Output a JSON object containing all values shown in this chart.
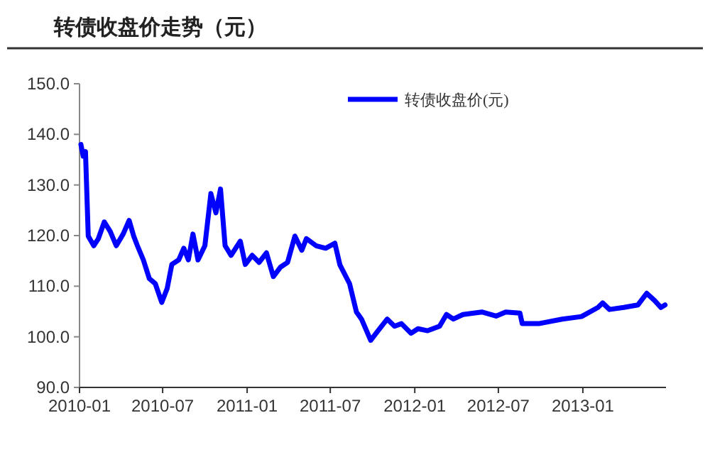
{
  "chart_data": {
    "type": "line",
    "title": "转债收盘价走势（元）",
    "x": [
      "2010-01-04",
      "2010-01-09",
      "2010-01-14",
      "2010-01-20",
      "2010-02-01",
      "2010-02-11",
      "2010-02-24",
      "2010-03-09",
      "2010-03-22",
      "2010-04-06",
      "2010-04-19",
      "2010-04-29",
      "2010-05-07",
      "2010-05-20",
      "2010-06-02",
      "2010-06-15",
      "2010-06-29",
      "2010-07-11",
      "2010-07-21",
      "2010-08-05",
      "2010-08-16",
      "2010-08-26",
      "2010-09-05",
      "2010-09-16",
      "2010-10-01",
      "2010-10-14",
      "2010-10-25",
      "2010-11-04",
      "2010-11-14",
      "2010-11-27",
      "2010-12-17",
      "2010-12-28",
      "2011-01-12",
      "2011-01-27",
      "2011-02-12",
      "2011-02-27",
      "2011-03-15",
      "2011-03-30",
      "2011-04-15",
      "2011-04-30",
      "2011-05-10",
      "2011-05-31",
      "2011-06-21",
      "2011-07-11",
      "2011-07-22",
      "2011-08-12",
      "2011-08-27",
      "2011-09-07",
      "2011-09-27",
      "2011-10-13",
      "2011-11-02",
      "2011-11-18",
      "2011-12-03",
      "2011-12-24",
      "2012-01-08",
      "2012-01-29",
      "2012-02-24",
      "2012-03-10",
      "2012-03-25",
      "2012-04-15",
      "2012-05-26",
      "2012-06-26",
      "2012-07-17",
      "2012-08-17",
      "2012-08-22",
      "2012-09-27",
      "2012-11-17",
      "2012-12-29",
      "2013-02-03",
      "2013-02-13",
      "2013-02-28",
      "2013-03-31",
      "2013-05-01",
      "2013-05-20",
      "2013-06-06",
      "2013-06-20",
      "2013-06-29"
    ],
    "series": [
      {
        "name": "转债收盘价(元)",
        "color": "#0000ff",
        "values": [
          138,
          135.7,
          136.6,
          119.9,
          118,
          119.4,
          122.7,
          120.8,
          118,
          120.3,
          123,
          119.9,
          118,
          115.2,
          111.5,
          110.5,
          106.8,
          109.6,
          114.3,
          115.2,
          117.5,
          115.2,
          120.3,
          115.2,
          118,
          128.3,
          124.5,
          129.2,
          118,
          116.1,
          118.9,
          114.3,
          116.1,
          114.7,
          116.6,
          111.9,
          113.8,
          114.7,
          119.9,
          117.1,
          119.4,
          118,
          117.5,
          118.5,
          114.2,
          110.5,
          104.9,
          103.5,
          99.3,
          101.2,
          103.5,
          102.1,
          102.6,
          100.7,
          101.6,
          101.2,
          102.1,
          104.4,
          103.5,
          104.4,
          104.9,
          104.1,
          104.9,
          104.7,
          102.6,
          102.6,
          103.5,
          104,
          105.8,
          106.7,
          105.4,
          105.8,
          106.3,
          108.6,
          107.2,
          105.8,
          106.3
        ]
      }
    ],
    "xlim": [
      "2010-01-01",
      "2013-07-01"
    ],
    "xticks": [
      {
        "value": "2010-01-01",
        "label": "2010-01"
      },
      {
        "value": "2010-07-01",
        "label": "2010-07"
      },
      {
        "value": "2011-01-01",
        "label": "2011-01"
      },
      {
        "value": "2011-07-01",
        "label": "2011-07"
      },
      {
        "value": "2012-01-01",
        "label": "2012-01"
      },
      {
        "value": "2012-07-01",
        "label": "2012-07"
      },
      {
        "value": "2013-01-01",
        "label": "2013-01"
      }
    ],
    "ylim": [
      90,
      150
    ],
    "yticks": [
      {
        "value": 90,
        "label": "90.0"
      },
      {
        "value": 100,
        "label": "100.0"
      },
      {
        "value": 110,
        "label": "110.0"
      },
      {
        "value": 120,
        "label": "120.0"
      },
      {
        "value": 130,
        "label": "130.0"
      },
      {
        "value": 140,
        "label": "140.0"
      },
      {
        "value": 150,
        "label": "150.0"
      }
    ],
    "grid": false,
    "legend": "top right",
    "marker": "none",
    "line_style": "solid"
  }
}
